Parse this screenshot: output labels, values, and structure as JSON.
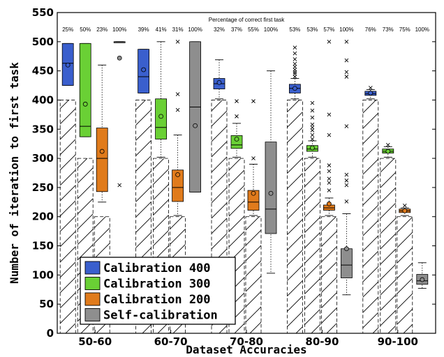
{
  "chart_data": {
    "type": "box",
    "xlabel": "Dataset Accuracies",
    "ylabel": "Number of iteration to first task",
    "ylim": [
      0,
      550
    ],
    "yticks": [
      0,
      50,
      100,
      150,
      200,
      250,
      300,
      350,
      400,
      450,
      500,
      550
    ],
    "categories": [
      "50-60",
      "60-70",
      "70-80",
      "80-90",
      "90-100"
    ],
    "annotation_title": "Percentage of correct first task",
    "legend": {
      "placement": "bottom-left"
    },
    "series": [
      {
        "name": "Calibration 400",
        "color": "#3a5fcd",
        "percent_labels": [
          "25%",
          "39%",
          "32%",
          "53%",
          "76%"
        ],
        "hatch_top": [
          400,
          400,
          400,
          400,
          400
        ],
        "boxes": [
          {
            "q1": 425,
            "median": 463,
            "q3": 497,
            "mean": 460,
            "whisker_low": 425,
            "whisker_high": 497,
            "outliers": []
          },
          {
            "q1": 412,
            "median": 440,
            "q3": 487,
            "mean": 452,
            "whisker_low": 412,
            "whisker_high": 487,
            "outliers": []
          },
          {
            "q1": 419,
            "median": 428,
            "q3": 437,
            "mean": 430,
            "whisker_low": 402,
            "whisker_high": 469,
            "outliers": []
          },
          {
            "q1": 412,
            "median": 420,
            "q3": 427,
            "mean": 420,
            "whisker_low": 402,
            "whisker_high": 437,
            "outliers": [
              440,
              445,
              448,
              452,
              457,
              462,
              470,
              480,
              490
            ]
          },
          {
            "q1": 408,
            "median": 411,
            "q3": 415,
            "mean": 412,
            "whisker_low": 402,
            "whisker_high": 418,
            "outliers": [
              421
            ]
          }
        ]
      },
      {
        "name": "Calibration 300",
        "color": "#6ad035",
        "percent_labels": [
          "50%",
          "41%",
          "37%",
          "53%",
          "73%"
        ],
        "hatch_top": [
          300,
          300,
          300,
          300,
          300
        ],
        "boxes": [
          {
            "q1": 337,
            "median": 355,
            "q3": 497,
            "mean": 393,
            "whisker_low": 337,
            "whisker_high": 497,
            "outliers": []
          },
          {
            "q1": 333,
            "median": 353,
            "q3": 402,
            "mean": 372,
            "whisker_low": 302,
            "whisker_high": 500,
            "outliers": []
          },
          {
            "q1": 317,
            "median": 323,
            "q3": 339,
            "mean": 333,
            "whisker_low": 302,
            "whisker_high": 360,
            "outliers": [
              372,
              398
            ]
          },
          {
            "q1": 312,
            "median": 316,
            "q3": 322,
            "mean": 318,
            "whisker_low": 302,
            "whisker_high": 330,
            "outliers": [
              333,
              340,
              348,
              353,
              358,
              370,
              382,
              395
            ]
          },
          {
            "q1": 309,
            "median": 312,
            "q3": 316,
            "mean": 312,
            "whisker_low": 302,
            "whisker_high": 320,
            "outliers": [
              323
            ]
          }
        ]
      },
      {
        "name": "Calibration 200",
        "color": "#e07b1c",
        "percent_labels": [
          "23%",
          "31%",
          "55%",
          "57%",
          "75%"
        ],
        "hatch_top": [
          200,
          200,
          200,
          200,
          200
        ],
        "boxes": [
          {
            "q1": 243,
            "median": 300,
            "q3": 352,
            "mean": 312,
            "whisker_low": 225,
            "whisker_high": 460,
            "outliers": []
          },
          {
            "q1": 226,
            "median": 250,
            "q3": 280,
            "mean": 272,
            "whisker_low": 202,
            "whisker_high": 340,
            "outliers": [
              383,
              410,
              500
            ]
          },
          {
            "q1": 211,
            "median": 225,
            "q3": 245,
            "mean": 240,
            "whisker_low": 202,
            "whisker_high": 290,
            "outliers": [
              300,
              398
            ]
          },
          {
            "q1": 211,
            "median": 215,
            "q3": 220,
            "mean": 222,
            "whisker_low": 202,
            "whisker_high": 232,
            "outliers": [
              245,
              258,
              265,
              278,
              288,
              340,
              375,
              500
            ]
          },
          {
            "q1": 207,
            "median": 210,
            "q3": 213,
            "mean": 210,
            "whisker_low": 202,
            "whisker_high": 215,
            "outliers": [
              219
            ]
          }
        ]
      },
      {
        "name": "Self-calibration",
        "color": "#8e8e8e",
        "percent_labels": [
          "100%",
          "100%",
          "100%",
          "100%",
          "100%"
        ],
        "hatch_top": [
          null,
          null,
          null,
          null,
          null
        ],
        "boxes": [
          {
            "q1": 500,
            "median": 500,
            "q3": 500,
            "mean": 472,
            "whisker_low": 500,
            "whisker_high": 500,
            "outliers": [
              254
            ]
          },
          {
            "q1": 242,
            "median": 388,
            "q3": 500,
            "mean": 356,
            "whisker_low": 242,
            "whisker_high": 500,
            "outliers": []
          },
          {
            "q1": 171,
            "median": 213,
            "q3": 328,
            "mean": 240,
            "whisker_low": 103,
            "whisker_high": 450,
            "outliers": []
          },
          {
            "q1": 95,
            "median": 117,
            "q3": 145,
            "mean": 145,
            "whisker_low": 66,
            "whisker_high": 205,
            "outliers": [
              226,
              254,
              262,
              272,
              355,
              440,
              448,
              468,
              500
            ]
          },
          {
            "q1": 84,
            "median": 90,
            "q3": 101,
            "mean": 92,
            "whisker_low": 77,
            "whisker_high": 121,
            "outliers": []
          }
        ]
      }
    ]
  }
}
